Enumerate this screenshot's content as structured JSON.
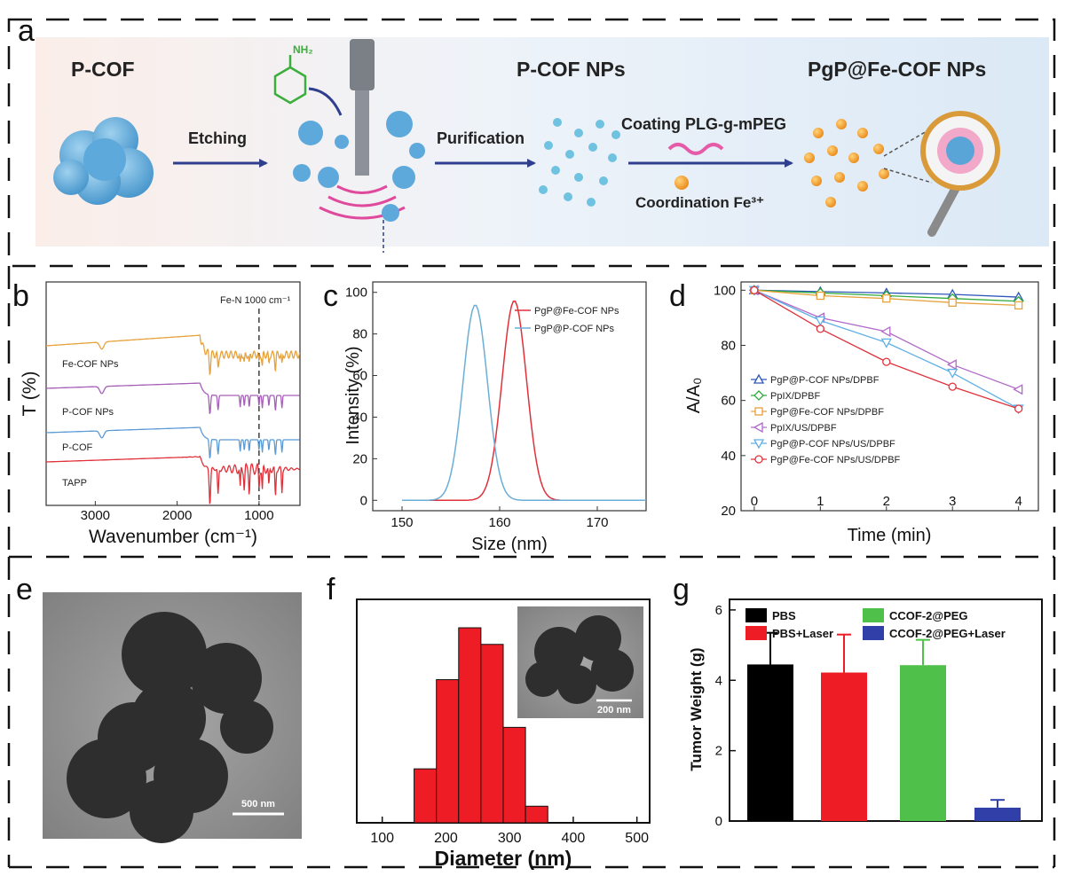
{
  "panel_letters": {
    "a": "a",
    "b": "b",
    "c": "c",
    "d": "d",
    "e": "e",
    "f": "f",
    "g": "g"
  },
  "scheme": {
    "pcof": "P-COF",
    "pcof_nps": "P-COF NPs",
    "pgp_nps": "PgP@Fe-COF NPs",
    "etching": "Etching",
    "purification": "Purification",
    "coating": "Coating PLG-g-mPEG",
    "coordination": "Coordination Fe³⁺",
    "nh2": "NH₂"
  },
  "scale_bars": {
    "e": "500 nm",
    "f_inset": "200 nm"
  },
  "colors": {
    "orange": "#E6A23C",
    "purple": "#A65FB8",
    "blue": "#5B9BD5",
    "red": "#E0313A",
    "dgreen": "#2EAA3A",
    "lblue": "#66B8E8",
    "pcof_red": "#E8505B"
  },
  "chart_data": [
    {
      "panel": "b",
      "type": "line",
      "title": "",
      "xlabel": "Wavenumber (cm⁻¹)",
      "ylabel": "T (%)",
      "xlim": [
        3600,
        500
      ],
      "xticks": [
        3000,
        2000,
        1000
      ],
      "annotation": "Fe-N 1000 cm⁻¹",
      "marker_x": 1000,
      "series": [
        {
          "name": "Fe-COF NPs",
          "color": "#E6A23C"
        },
        {
          "name": "P-COF NPs",
          "color": "#A65FB8"
        },
        {
          "name": "P-COF",
          "color": "#5B9BD5"
        },
        {
          "name": "TAPP",
          "color": "#E0313A"
        }
      ]
    },
    {
      "panel": "c",
      "type": "line",
      "title": "",
      "xlabel": "Size (nm)",
      "ylabel": "Intensity (%)",
      "xlim": [
        147,
        175
      ],
      "ylim": [
        -5,
        105
      ],
      "xticks": [
        150,
        160,
        170
      ],
      "yticks": [
        0,
        20,
        40,
        60,
        80,
        100
      ],
      "series": [
        {
          "name": "PgP@Fe-COF NPs",
          "color": "#E0313A",
          "center": 161.5,
          "sigma": 1.25,
          "peak": 96
        },
        {
          "name": "PgP@P-COF NPs",
          "color": "#6BAED6",
          "center": 157.5,
          "sigma": 1.25,
          "peak": 94
        }
      ]
    },
    {
      "panel": "d",
      "type": "line",
      "title": "",
      "xlabel": "Time (min)",
      "ylabel": "A/A₀",
      "xlim": [
        -0.2,
        4.3
      ],
      "ylim": [
        20,
        103
      ],
      "xticks": [
        0,
        1,
        2,
        3,
        4
      ],
      "yticks": [
        20,
        40,
        60,
        80,
        100
      ],
      "x": [
        0,
        1,
        2,
        3,
        4
      ],
      "series": [
        {
          "name": "PgP@P-COF NPs/DPBF",
          "color": "#2C57B8",
          "marker": "tri-up",
          "values": [
            100,
            99.5,
            99,
            98.5,
            97.5
          ]
        },
        {
          "name": "PpIX/DPBF",
          "color": "#2EAA3A",
          "marker": "diamond",
          "values": [
            100,
            99,
            98,
            97,
            96
          ]
        },
        {
          "name": "PgP@Fe-COF NPs/DPBF",
          "color": "#E6A23C",
          "marker": "square",
          "values": [
            100,
            98,
            97,
            95.5,
            94.5
          ]
        },
        {
          "name": "PpIX/US/DPBF",
          "color": "#B06AC8",
          "marker": "tri-left",
          "values": [
            100,
            90,
            85,
            73,
            64
          ]
        },
        {
          "name": "PgP@P-COF NPs/US/DPBF",
          "color": "#5FB0E6",
          "marker": "tri-down",
          "values": [
            100,
            89,
            81,
            70,
            57
          ]
        },
        {
          "name": "PgP@Fe-COF NPs/US/DPBF",
          "color": "#E0313A",
          "marker": "circle",
          "values": [
            100,
            86,
            74,
            65,
            57
          ]
        }
      ]
    },
    {
      "panel": "f",
      "type": "bar",
      "title": "",
      "xlabel": "Diameter (nm)",
      "ylabel": "",
      "xlim": [
        60,
        520
      ],
      "ylim": [
        0,
        100
      ],
      "xticks": [
        100,
        200,
        300,
        400,
        500
      ],
      "bin_width": 35,
      "bin_starts": [
        150,
        185,
        220,
        255,
        290,
        325
      ],
      "values": [
        26,
        69,
        94,
        86,
        46,
        8
      ]
    },
    {
      "panel": "g",
      "type": "bar",
      "title": "",
      "xlabel": "",
      "ylabel": "Tumor Weight (g)",
      "ylim": [
        0,
        6.3
      ],
      "yticks": [
        0,
        2,
        4,
        6
      ],
      "categories": [
        "PBS",
        "PBS+Laser",
        "CCOF-2@PEG",
        "CCOF-2@PEG+Laser"
      ],
      "values": [
        4.45,
        4.22,
        4.43,
        0.38
      ],
      "errors": [
        0.9,
        1.08,
        0.72,
        0.22
      ],
      "colors": [
        "#000000",
        "#EE1C24",
        "#4FC14A",
        "#3040A8"
      ]
    }
  ]
}
